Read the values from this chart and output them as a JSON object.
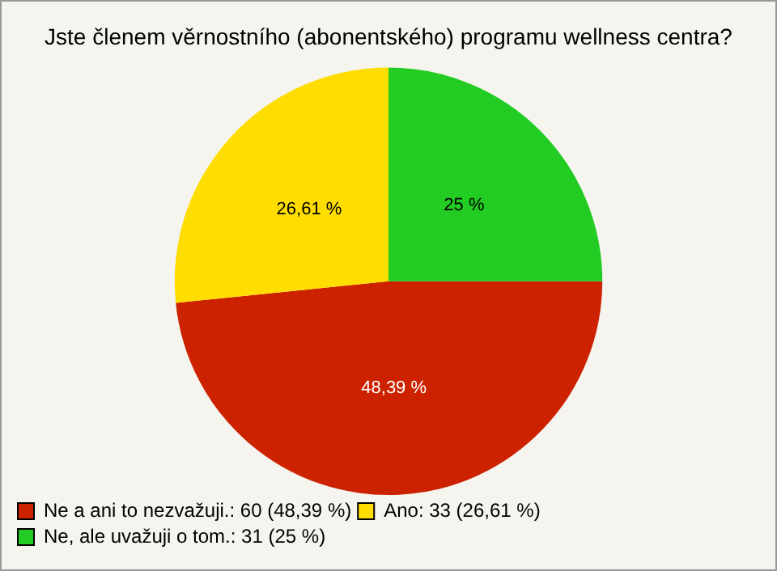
{
  "chart_data": {
    "type": "pie",
    "title": "Jste členem věrnostního (abonentského) programu wellness centra?",
    "categories": [
      "Ne a ani to nezvažuji.: 60 (48,39 %)",
      "Ano: 33 (26,61 %)",
      "Ne, ale uvažuji o tom.: 31 (25 %)"
    ],
    "values": [
      48.39,
      26.61,
      25
    ],
    "colors": [
      "#cc2200",
      "#ffdd00",
      "#22cc22"
    ],
    "value_labels": [
      "48,39 %",
      "26,61 %",
      "25 %"
    ],
    "legend": "bottom left"
  }
}
